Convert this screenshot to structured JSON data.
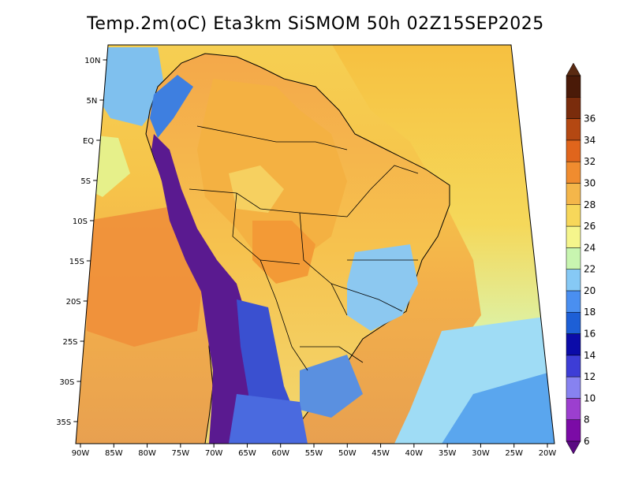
{
  "title": "Temp.2m(oC) Eta3km SiSMOM 50h 02Z15SEP2025",
  "map": {
    "lat_labels": [
      "10N",
      "5N",
      "EQ",
      "5S",
      "10S",
      "15S",
      "20S",
      "25S",
      "30S",
      "35S"
    ],
    "lon_labels": [
      "90W",
      "85W",
      "80W",
      "75W",
      "70W",
      "65W",
      "60W",
      "55W",
      "50W",
      "45W",
      "40W",
      "35W",
      "30W",
      "25W",
      "20W"
    ]
  },
  "colorbar": {
    "labels": [
      "6",
      "8",
      "10",
      "12",
      "14",
      "16",
      "18",
      "20",
      "22",
      "24",
      "26",
      "28",
      "30",
      "32",
      "34",
      "36"
    ],
    "colors": [
      "#7b0ba6",
      "#9c3fcf",
      "#8782f0",
      "#3d3dd6",
      "#0b0ba8",
      "#1d5fd6",
      "#4a8ff0",
      "#86c9f5",
      "#c8f5b0",
      "#f5f58c",
      "#f7d75a",
      "#f4b64a",
      "#f08c2f",
      "#e0651c",
      "#b44812",
      "#7a2c0c",
      "#4a1a08"
    ],
    "arrow_low_color": "#5a0a82",
    "arrow_high_color": "#5a2a12"
  },
  "palette": {
    "ocean_north": "#f6c848",
    "ocean_south": "#f0a24a",
    "land_warm": "#f6b23e",
    "andes": "#6a1a9a",
    "south_cold": "#4a80e0"
  }
}
